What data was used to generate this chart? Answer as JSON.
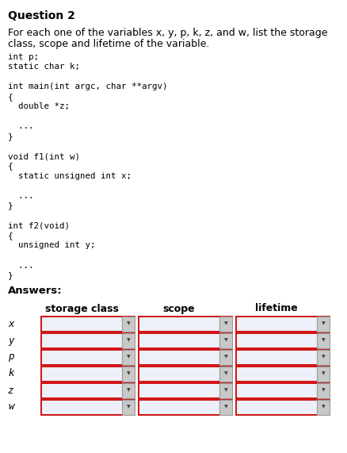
{
  "title": "Question 2",
  "code_lines": [
    "int p;",
    "static char k;",
    "",
    "int main(int argc, char **argv)",
    "{",
    "  double *z;",
    "",
    "  ...",
    "}",
    "",
    "void f1(int w)",
    "{",
    "  static unsigned int x;",
    "",
    "  ...",
    "}",
    "",
    "int f2(void)",
    "{",
    "  unsigned int y;",
    "",
    "  ...",
    "}"
  ],
  "answers_label": "Answers:",
  "col_headers": [
    "storage class",
    "scope",
    "lifetime"
  ],
  "row_labels": [
    "x",
    "y",
    "p",
    "k",
    "z",
    "w"
  ],
  "bg_color": "#ffffff",
  "box_fill": "#edf0f8",
  "box_border": "#cc0000",
  "dropdown_fill": "#c8c8c8",
  "dropdown_border": "#999999",
  "code_font_size": 7.8,
  "text_font_size": 9.0,
  "title_font_size": 10.0
}
